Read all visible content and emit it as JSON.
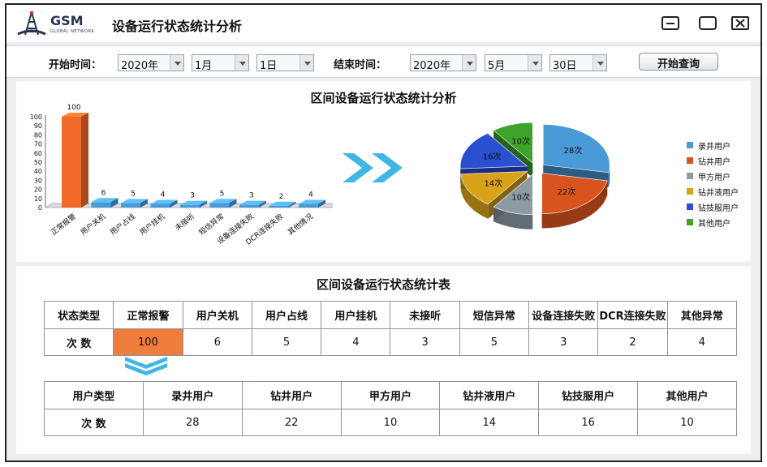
{
  "titlebar": {
    "brand": "GSM",
    "brand_sub": "GLOBAL NETWORK",
    "title": "设备运行状态统计分析"
  },
  "filter": {
    "start_label": "开始时间：",
    "start_year": "2020年",
    "start_month": "1月",
    "start_day": "1日",
    "end_label": "结束时间：",
    "end_year": "2020年",
    "end_month": "5月",
    "end_day": "30日",
    "query_button": "开始查询"
  },
  "chart_section": {
    "title": "区间设备运行状态统计分析"
  },
  "chart_data": [
    {
      "type": "bar",
      "categories": [
        "正常报警",
        "用户关机",
        "用户占线",
        "用户挂机",
        "未接听",
        "短信异常",
        "设备连接失败",
        "DCR连接失败",
        "其他情况"
      ],
      "values": [
        100,
        6,
        5,
        4,
        3,
        5,
        3,
        2,
        4
      ],
      "yticks": [
        0,
        10,
        20,
        30,
        40,
        50,
        60,
        70,
        80,
        90,
        100
      ],
      "ylim": [
        0,
        100
      ],
      "colors": {
        "highlight": "#f06a2a",
        "normal": "#4a9ad8"
      }
    },
    {
      "type": "pie",
      "labels": [
        "录井用户",
        "钻井用户",
        "甲方用户",
        "钻井液用户",
        "钻技服用户",
        "其他用户"
      ],
      "values": [
        28,
        22,
        10,
        14,
        16,
        10
      ],
      "value_labels": [
        "28次",
        "22次",
        "10次",
        "14次",
        "16次",
        "10次"
      ],
      "colors": [
        "#4a9ad8",
        "#d9531e",
        "#8e9aa4",
        "#d8a21a",
        "#2a4fd0",
        "#3fa32a"
      ],
      "legend_position": "right"
    }
  ],
  "table_section": {
    "title": "区间设备运行状态统计表",
    "status_table": {
      "headers": [
        "状态类型",
        "正常报警",
        "用户关机",
        "用户占线",
        "用户挂机",
        "未接听",
        "短信异常",
        "设备连接失败",
        "DCR连接失败",
        "其他异常"
      ],
      "row": [
        "次 数",
        "100",
        "6",
        "5",
        "4",
        "3",
        "5",
        "3",
        "2",
        "4"
      ]
    },
    "user_table": {
      "headers": [
        "用户类型",
        "录井用户",
        "钻井用户",
        "甲方用户",
        "钻井液用户",
        "钻技服用户",
        "其他用户"
      ],
      "row": [
        "次 数",
        "28",
        "22",
        "10",
        "14",
        "16",
        "10"
      ]
    }
  },
  "colors": {
    "accent_blue": "#3fb6e6",
    "highlight_cell": "#ef7d3c"
  }
}
